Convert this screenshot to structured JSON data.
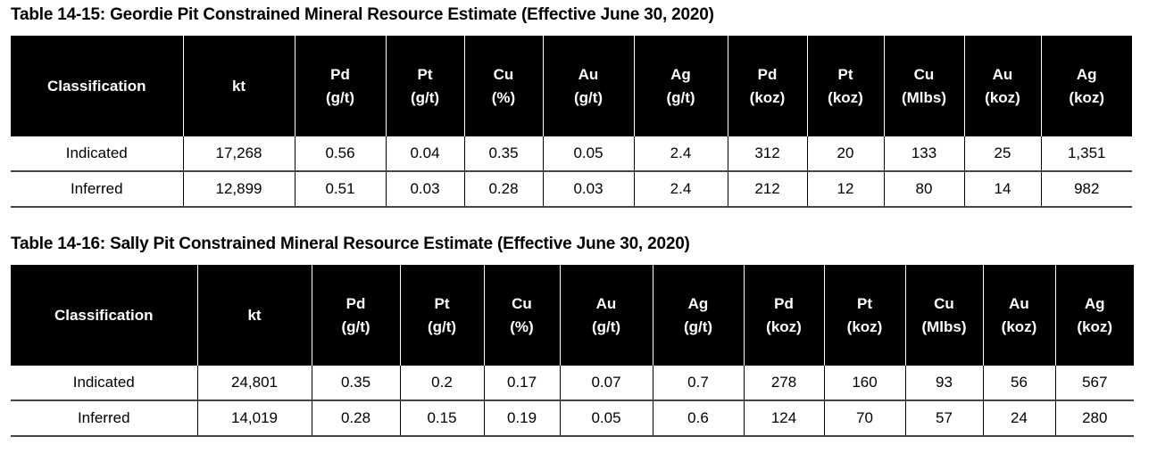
{
  "tables": [
    {
      "title": "Table 14-15:  Geordie Pit Constrained Mineral Resource Estimate (Effective June 30, 2020)",
      "headers": [
        [
          "Classification"
        ],
        [
          "kt"
        ],
        [
          "Pd",
          "(g/t)"
        ],
        [
          "Pt",
          "(g/t)"
        ],
        [
          "Cu",
          "(%)"
        ],
        [
          "Au",
          "(g/t)"
        ],
        [
          "Ag",
          "(g/t)"
        ],
        [
          "Pd",
          "(koz)"
        ],
        [
          "Pt",
          "(koz)"
        ],
        [
          "Cu",
          "(Mlbs)"
        ],
        [
          "Au",
          "(koz)"
        ],
        [
          "Ag",
          "(koz)"
        ]
      ],
      "rows": [
        [
          "Indicated",
          "17,268",
          "0.56",
          "0.04",
          "0.35",
          "0.05",
          "2.4",
          "312",
          "20",
          "133",
          "25",
          "1,351"
        ],
        [
          "Inferred",
          "12,899",
          "0.51",
          "0.03",
          "0.28",
          "0.03",
          "2.4",
          "212",
          "12",
          "80",
          "14",
          "982"
        ]
      ]
    },
    {
      "title": "Table 14-16:  Sally Pit Constrained Mineral Resource Estimate (Effective June 30, 2020)",
      "headers": [
        [
          "Classification"
        ],
        [
          "kt"
        ],
        [
          "Pd",
          "(g/t)"
        ],
        [
          "Pt",
          "(g/t)"
        ],
        [
          "Cu",
          "(%)"
        ],
        [
          "Au",
          "(g/t)"
        ],
        [
          "Ag",
          "(g/t)"
        ],
        [
          "Pd",
          "(koz)"
        ],
        [
          "Pt",
          "(koz)"
        ],
        [
          "Cu",
          "(Mlbs)"
        ],
        [
          "Au",
          "(koz)"
        ],
        [
          "Ag",
          "(koz)"
        ]
      ],
      "rows": [
        [
          "Indicated",
          "24,801",
          "0.35",
          "0.2",
          "0.17",
          "0.07",
          "0.7",
          "278",
          "160",
          "93",
          "56",
          "567"
        ],
        [
          "Inferred",
          "14,019",
          "0.28",
          "0.15",
          "0.19",
          "0.05",
          "0.6",
          "124",
          "70",
          "57",
          "24",
          "280"
        ]
      ]
    }
  ]
}
